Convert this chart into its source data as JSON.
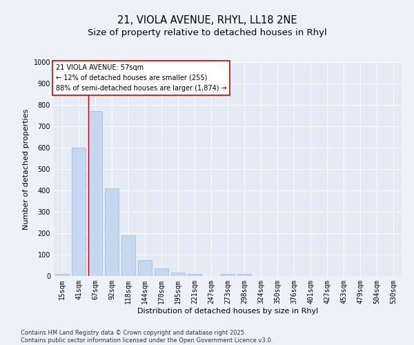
{
  "title_line1": "21, VIOLA AVENUE, RHYL, LL18 2NE",
  "title_line2": "Size of property relative to detached houses in Rhyl",
  "xlabel": "Distribution of detached houses by size in Rhyl",
  "ylabel": "Number of detached properties",
  "categories": [
    "15sqm",
    "41sqm",
    "67sqm",
    "92sqm",
    "118sqm",
    "144sqm",
    "170sqm",
    "195sqm",
    "221sqm",
    "247sqm",
    "273sqm",
    "298sqm",
    "324sqm",
    "350sqm",
    "376sqm",
    "401sqm",
    "427sqm",
    "453sqm",
    "479sqm",
    "504sqm",
    "530sqm"
  ],
  "values": [
    10,
    600,
    770,
    410,
    190,
    75,
    35,
    15,
    10,
    0,
    10,
    10,
    0,
    0,
    0,
    0,
    0,
    0,
    0,
    0,
    0
  ],
  "bar_color": "#c5d8f0",
  "bar_edgecolor": "#a0b8d8",
  "vline_color": "#cc0000",
  "vline_x": 1.6,
  "annotation_box_text": "21 VIOLA AVENUE: 57sqm\n← 12% of detached houses are smaller (255)\n88% of semi-detached houses are larger (1,874) →",
  "ylim": [
    0,
    1000
  ],
  "yticks": [
    0,
    100,
    200,
    300,
    400,
    500,
    600,
    700,
    800,
    900,
    1000
  ],
  "background_color": "#eef2f8",
  "plot_background": "#e4eaf6",
  "grid_color": "#ffffff",
  "footer_text": "Contains HM Land Registry data © Crown copyright and database right 2025.\nContains public sector information licensed under the Open Government Licence v3.0.",
  "title_fontsize": 10.5,
  "subtitle_fontsize": 9.5,
  "ylabel_fontsize": 8,
  "xlabel_fontsize": 8,
  "tick_fontsize": 7,
  "annotation_fontsize": 7,
  "footer_fontsize": 6
}
